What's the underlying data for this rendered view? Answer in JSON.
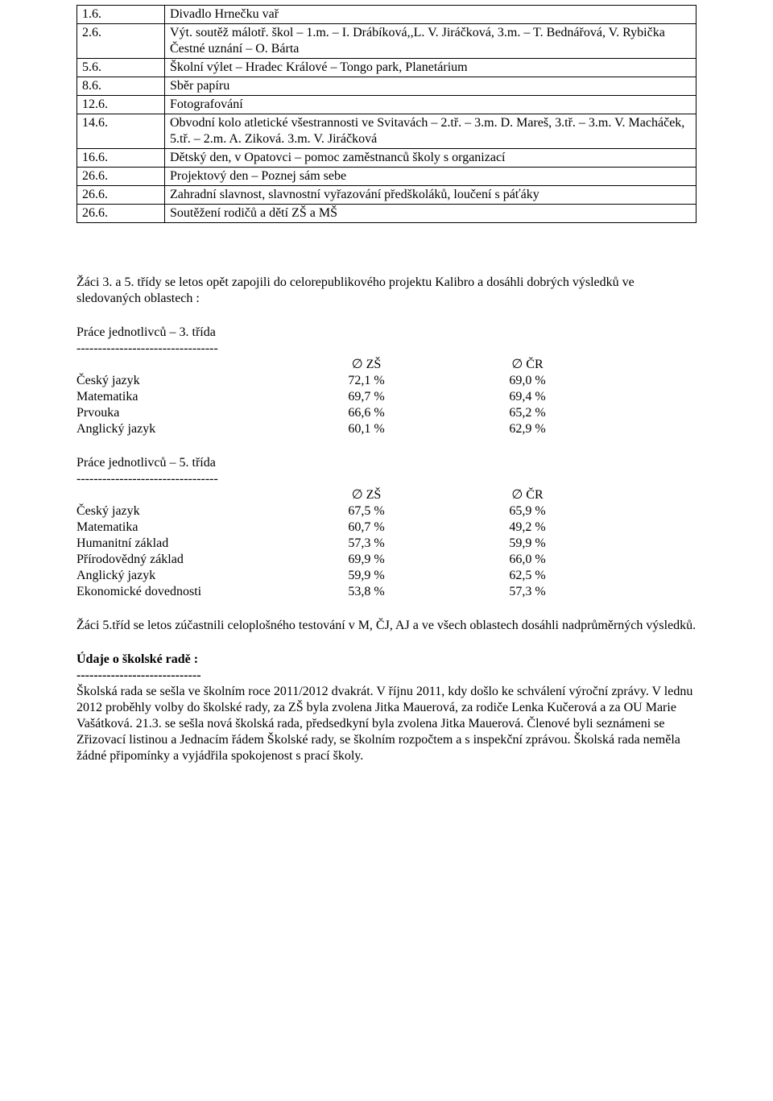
{
  "topTable": {
    "rows": [
      {
        "left": "1.6.",
        "right": "Divadlo Hrnečku vař"
      },
      {
        "left": "2.6.",
        "right": "Výt. soutěž málotř. škol – 1.m. – I. Drábíková,,L. V. Jiráčková, 3.m. – T. Bednářová, V. Rybička\nČestné uznání – O. Bárta"
      },
      {
        "left": "5.6.",
        "right": "Školní výlet – Hradec Králové – Tongo park, Planetárium"
      },
      {
        "left": "8.6.",
        "right": "Sběr papíru"
      },
      {
        "left": "12.6.",
        "right": "Fotografování"
      },
      {
        "left": "14.6.",
        "right": "Obvodní kolo atletické všestrannosti ve Svitavách – 2.tř. – 3.m. D. Mareš, 3.tř. – 3.m. V. Macháček, 5.tř. – 2.m. A. Ziková. 3.m. V. Jiráčková"
      },
      {
        "left": "16.6.",
        "right": "Dětský den, v Opatovci – pomoc zaměstnanců školy s organizací"
      },
      {
        "left": "26.6.",
        "right": "Projektový den – Poznej sám sebe"
      },
      {
        "left": "26.6.",
        "right": "Zahradní slavnost, slavnostní vyřazování předškoláků, loučení s páťáky"
      },
      {
        "left": "26.6.",
        "right": "Soutěžení rodičů a dětí ZŠ a MŠ"
      }
    ]
  },
  "intro": "Žáci 3. a 5. třídy se letos opět zapojili do celorepublikového projektu Kalibro a dosáhli dobrých výsledků ve sledovaných oblastech :",
  "block3": {
    "title": "Práce jednotlivců – 3. třída",
    "dashes": "---------------------------------",
    "header": {
      "label": "",
      "a": "∅ ZŠ",
      "b": "∅ ČR"
    },
    "rows": [
      {
        "label": "Český jazyk",
        "a": "72,1 %",
        "b": "69,0 %"
      },
      {
        "label": "Matematika",
        "a": "69,7 %",
        "b": "69,4 %"
      },
      {
        "label": "Prvouka",
        "a": "66,6 %",
        "b": "65,2 %"
      },
      {
        "label": "Anglický jazyk",
        "a": "60,1 %",
        "b": "62,9 %"
      }
    ]
  },
  "block5": {
    "title": "Práce jednotlivců – 5. třída",
    "dashes": "---------------------------------",
    "header": {
      "label": "",
      "a": "∅ ZŠ",
      "b": "∅ ČR"
    },
    "rows": [
      {
        "label": "Český jazyk",
        "a": "67,5 %",
        "b": "65,9 %"
      },
      {
        "label": "Matematika",
        "a": "60,7 %",
        "b": "49,2 %"
      },
      {
        "label": "Humanitní základ",
        "a": "57,3 %",
        "b": "59,9 %"
      },
      {
        "label": "Přírodovědný základ",
        "a": "69,9 %",
        "b": "66,0 %"
      },
      {
        "label": "Anglický jazyk",
        "a": "59,9 %",
        "b": "62,5 %"
      },
      {
        "label": "Ekonomické dovednosti",
        "a": "53,8 %",
        "b": "57,3 %"
      }
    ]
  },
  "zaci5": "Žáci 5.tříd se letos zúčastnili celoplošného testování v  M, ČJ, AJ a ve všech oblastech dosáhli nadprůměrných výsledků.",
  "rada": {
    "heading": "Údaje o školské radě :",
    "dashes": "-----------------------------",
    "body": "Školská rada se sešla ve školním roce 2011/2012 dvakrát. V říjnu 2011, kdy došlo ke schválení výroční zprávy. V lednu 2012 proběhly volby do školské rady, za ZŠ byla zvolena Jitka Mauerová, za rodiče Lenka Kučerová a za OU Marie Vašátková. 21.3. se sešla nová školská rada, předsedkyní byla zvolena Jitka Mauerová. Členové byli seznámeni se Zřizovací listinou a Jednacím řádem Školské rady, se školním rozpočtem a s inspekční zprávou. Školská rada neměla žádné připomínky a vyjádřila spokojenost s prací školy."
  }
}
